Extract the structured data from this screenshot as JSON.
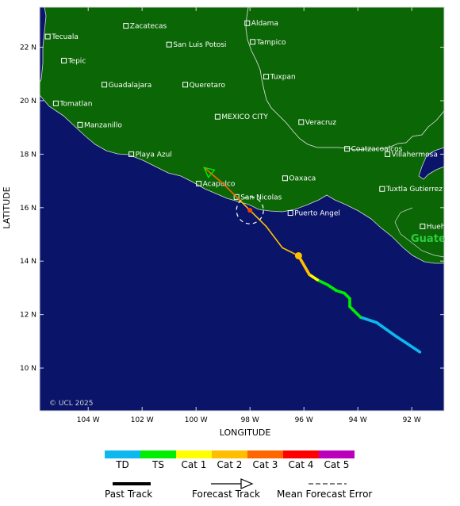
{
  "map": {
    "axes": {
      "xlabel": "LONGITUDE",
      "ylabel": "LATITUDE",
      "lon_ticks": [
        {
          "lon": -104,
          "label": "104 W"
        },
        {
          "lon": -102,
          "label": "102 W"
        },
        {
          "lon": -100,
          "label": "100 W"
        },
        {
          "lon": -98,
          "label": "98 W"
        },
        {
          "lon": -96,
          "label": "96 W"
        },
        {
          "lon": -94,
          "label": "94 W"
        },
        {
          "lon": -92,
          "label": "92 W"
        }
      ],
      "lat_ticks": [
        {
          "lat": 22,
          "label": "22 N"
        },
        {
          "lat": 20,
          "label": "20 N"
        },
        {
          "lat": 18,
          "label": "18 N"
        },
        {
          "lat": 16,
          "label": "16 N"
        },
        {
          "lat": 14,
          "label": "14 N"
        },
        {
          "lat": 12,
          "label": "12 N"
        },
        {
          "lat": 10,
          "label": "10 N"
        }
      ],
      "lon_range": [
        -105.8,
        -90.8
      ],
      "lat_range": [
        8.4,
        23.5
      ]
    },
    "copyright": "© UCL 2025",
    "region_label": "Guate",
    "cities": [
      {
        "name": "Aldama",
        "lon": -98.1,
        "lat": 22.9
      },
      {
        "name": "Zacatecas",
        "lon": -102.6,
        "lat": 22.8
      },
      {
        "name": "Tecuala",
        "lon": -105.5,
        "lat": 22.4
      },
      {
        "name": "Tampico",
        "lon": -97.9,
        "lat": 22.2
      },
      {
        "name": "San Luis Potosi",
        "lon": -101.0,
        "lat": 22.1
      },
      {
        "name": "Tepic",
        "lon": -104.9,
        "lat": 21.5
      },
      {
        "name": "Tuxpan",
        "lon": -97.4,
        "lat": 20.9
      },
      {
        "name": "Guadalajara",
        "lon": -103.4,
        "lat": 20.6
      },
      {
        "name": "Queretaro",
        "lon": -100.4,
        "lat": 20.6
      },
      {
        "name": "Tomatlan",
        "lon": -105.2,
        "lat": 19.9
      },
      {
        "name": "MEXICO CITY",
        "lon": -99.2,
        "lat": 19.4
      },
      {
        "name": "Manzanillo",
        "lon": -104.3,
        "lat": 19.1
      },
      {
        "name": "Veracruz",
        "lon": -96.1,
        "lat": 19.2
      },
      {
        "name": "Playa Azul",
        "lon": -102.4,
        "lat": 18.0
      },
      {
        "name": "Coatzacoalcos",
        "lon": -94.4,
        "lat": 18.2
      },
      {
        "name": "Villahermosa",
        "lon": -92.9,
        "lat": 18.0
      },
      {
        "name": "Acapulco",
        "lon": -99.9,
        "lat": 16.9
      },
      {
        "name": "Oaxaca",
        "lon": -96.7,
        "lat": 17.1
      },
      {
        "name": "Tuxtla Gutierrez",
        "lon": -93.1,
        "lat": 16.7
      },
      {
        "name": "San Nicolas",
        "lon": -98.5,
        "lat": 16.4
      },
      {
        "name": "Puerto Angel",
        "lon": -96.5,
        "lat": 15.8
      },
      {
        "name": "Huehuetenango",
        "lon": -91.6,
        "lat": 15.3
      }
    ],
    "past_track": [
      {
        "lon": -91.7,
        "lat": 10.6,
        "category": "TD"
      },
      {
        "lon": -92.6,
        "lat": 11.2,
        "category": "TD"
      },
      {
        "lon": -93.3,
        "lat": 11.7,
        "category": "TD"
      },
      {
        "lon": -93.9,
        "lat": 11.9,
        "category": "TD"
      },
      {
        "lon": -94.3,
        "lat": 12.3,
        "category": "TS"
      },
      {
        "lon": -94.3,
        "lat": 12.6,
        "category": "TS"
      },
      {
        "lon": -94.5,
        "lat": 12.8,
        "category": "TS"
      },
      {
        "lon": -94.8,
        "lat": 12.9,
        "category": "TS"
      },
      {
        "lon": -95.1,
        "lat": 13.1,
        "category": "TS"
      },
      {
        "lon": -95.5,
        "lat": 13.3,
        "category": "TS"
      },
      {
        "lon": -95.8,
        "lat": 13.5,
        "category": "Cat 1"
      },
      {
        "lon": -96.2,
        "lat": 14.2,
        "category": "Cat 2"
      }
    ],
    "current_position": {
      "lon": -96.2,
      "lat": 14.2,
      "category": "Cat 2"
    },
    "forecast_track": [
      {
        "lon": -96.2,
        "lat": 14.2,
        "category": "Cat 2"
      },
      {
        "lon": -96.8,
        "lat": 14.5,
        "category": "Cat 2"
      },
      {
        "lon": -97.4,
        "lat": 15.3,
        "category": "Cat 2"
      },
      {
        "lon": -98.0,
        "lat": 15.9,
        "category": "Cat 2"
      },
      {
        "lon": -98.4,
        "lat": 16.3,
        "category": "Cat 3"
      },
      {
        "lon": -99.0,
        "lat": 16.9,
        "category": "Cat 3"
      },
      {
        "lon": -99.7,
        "lat": 17.5,
        "category": "TS"
      }
    ],
    "forecast_point": {
      "lon": -98.0,
      "lat": 15.9
    },
    "error_circle": {
      "lon": -98.0,
      "lat": 15.9,
      "radius_deg": 0.5
    },
    "colors": {
      "ocean": "#0a1569",
      "land": "#0b6606",
      "coast": "#d9d9d9",
      "frame": "#d9d9d9",
      "forecast_point": "#ff4000",
      "current_position": "#ffc000"
    }
  },
  "legend": {
    "categories": [
      {
        "label": "TD",
        "color": "#0cb8ee"
      },
      {
        "label": "TS",
        "color": "#00ee00"
      },
      {
        "label": "Cat 1",
        "color": "#ffff00"
      },
      {
        "label": "Cat 2",
        "color": "#ffbf00"
      },
      {
        "label": "Cat 3",
        "color": "#ff6600"
      },
      {
        "label": "Cat 4",
        "color": "#ff0000"
      },
      {
        "label": "Cat 5",
        "color": "#bb00bb"
      }
    ],
    "past_track_label": "Past Track",
    "forecast_track_label": "Forecast Track",
    "error_label": "Mean Forecast Error"
  }
}
